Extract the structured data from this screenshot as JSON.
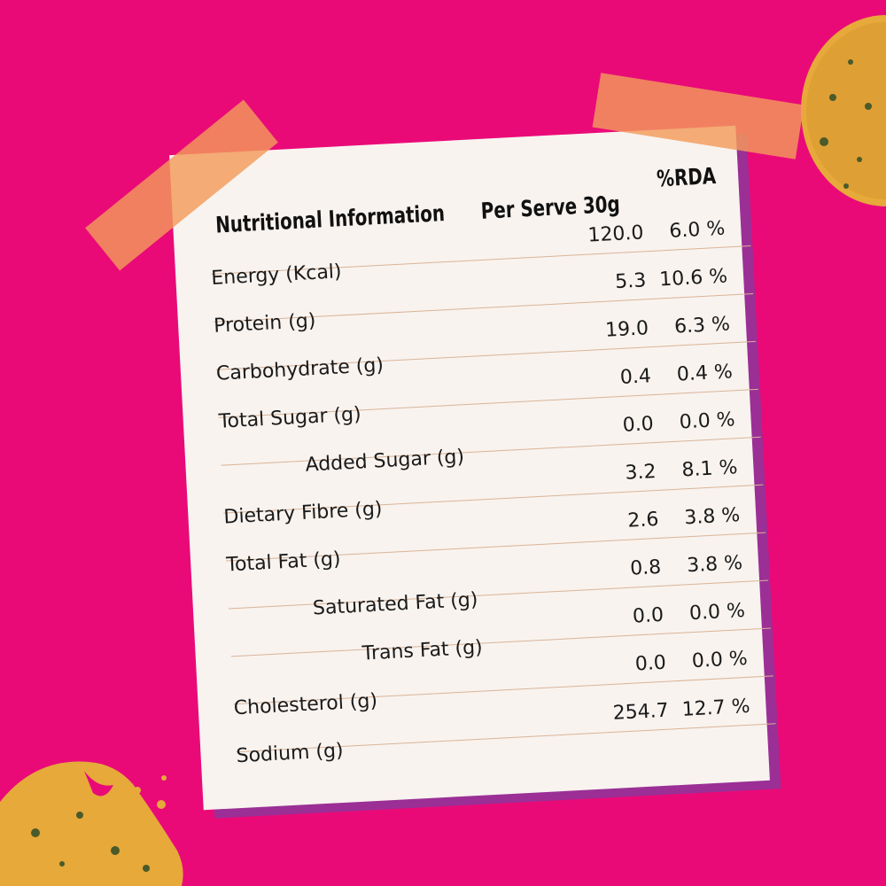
{
  "header": {
    "label": "Nutritional Information",
    "serve": "Per Serve 30g",
    "rda": "%RDA"
  },
  "rows": [
    {
      "label": "Energy (Kcal)",
      "serve": "120.0",
      "rda": "6.0 %"
    },
    {
      "label": "Protein (g)",
      "serve": "5.3",
      "rda": "10.6 %"
    },
    {
      "label": "Carbohydrate (g)",
      "serve": "19.0",
      "rda": "6.3 %"
    },
    {
      "label": "Total Sugar (g)",
      "serve": "0.4",
      "rda": "0.4 %"
    },
    {
      "label": "Added Sugar (g)",
      "serve": "0.0",
      "rda": "0.0 %"
    },
    {
      "label": "Dietary Fibre (g)",
      "serve": "3.2",
      "rda": "8.1 %"
    },
    {
      "label": "Total Fat (g)",
      "serve": "2.6",
      "rda": "3.8 %"
    },
    {
      "label": "Saturated Fat (g)",
      "serve": "0.8",
      "rda": "3.8 %"
    },
    {
      "label": "Trans Fat (g)",
      "serve": "0.0",
      "rda": "0.0 %"
    },
    {
      "label": "Cholesterol (g)",
      "serve": "0.0",
      "rda": "0.0 %"
    },
    {
      "label": "Sodium (g)",
      "serve": "254.7",
      "rda": "12.7 %"
    }
  ],
  "colors": {
    "background": "#e90a78",
    "paper": "#f8f3ef",
    "paper_shadow": "#9b2f96",
    "tape": "#f39b5a",
    "rule": "#d9b498"
  }
}
